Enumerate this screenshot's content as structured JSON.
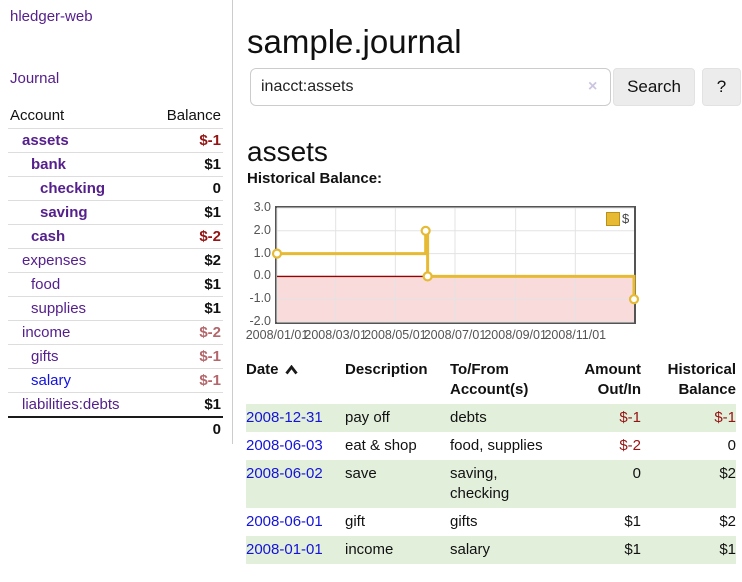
{
  "app_title": "hledger-web",
  "sidebar": {
    "journal_link": "Journal",
    "accounts": {
      "header_account": "Account",
      "header_balance": "Balance",
      "rows": [
        {
          "name": "assets",
          "balance": "$-1",
          "level": 1,
          "bold": true
        },
        {
          "name": "bank",
          "balance": "$1",
          "level": 2,
          "bold": true
        },
        {
          "name": "checking",
          "balance": "0",
          "level": 3,
          "bold": true
        },
        {
          "name": "saving",
          "balance": "$1",
          "level": 3,
          "bold": true
        },
        {
          "name": "cash",
          "balance": "$-2",
          "level": 2,
          "bold": true
        },
        {
          "name": "expenses",
          "balance": "$2",
          "level": 1,
          "bold": false
        },
        {
          "name": "food",
          "balance": "$1",
          "level": 2,
          "bold": false
        },
        {
          "name": "supplies",
          "balance": "$1",
          "level": 2,
          "bold": false
        },
        {
          "name": "income",
          "balance": "$-2",
          "level": 1,
          "bold": false
        },
        {
          "name": "gifts",
          "balance": "$-1",
          "level": 2,
          "bold": false
        },
        {
          "name": "salary",
          "balance": "$-1",
          "level": 2,
          "bold": false,
          "link_color": "blue"
        },
        {
          "name": "liabilities:debts",
          "balance": "$1",
          "level": 1,
          "bold": false
        }
      ],
      "total": "0"
    }
  },
  "main": {
    "title": "sample.journal",
    "search": {
      "value": "inacct:assets",
      "clear_symbol": "×",
      "button_label": "Search",
      "help_label": "?"
    },
    "heading": "assets",
    "chart_label": "Historical Balance:"
  },
  "chart_data": {
    "type": "line",
    "step": true,
    "title": "Historical Balance",
    "legend": [
      {
        "label": "$",
        "color": "#e7ba33"
      }
    ],
    "legend_position": "top-right",
    "x_range": [
      "2008/01/01",
      "2008/12/31"
    ],
    "ylim": [
      -2,
      3
    ],
    "x_ticks": [
      "2008/01/01",
      "2008/03/01",
      "2008/05/01",
      "2008/07/01",
      "2008/09/01",
      "2008/11/01"
    ],
    "y_ticks": [
      "3.0",
      "2.0",
      "1.0",
      "0.0",
      "-1.0",
      "-2.0"
    ],
    "points": [
      {
        "x": "2008/01/01",
        "y": 1
      },
      {
        "x": "2008/06/01",
        "y": 2
      },
      {
        "x": "2008/06/03",
        "y": 0
      },
      {
        "x": "2008/12/31",
        "y": -1
      }
    ],
    "grid": true,
    "negative_region": {
      "below": 0,
      "fill": "#fadbdb",
      "line_color": "#990000"
    }
  },
  "register": {
    "headers": {
      "date": "Date",
      "description": "Description",
      "accounts": "To/From\nAccount(s)",
      "amount": "Amount\nOut/In",
      "balance": "Historical\nBalance"
    },
    "rows": [
      {
        "date": "2008-12-31",
        "description": "pay off",
        "accounts": "debts",
        "amount": "$-1",
        "balance": "$-1"
      },
      {
        "date": "2008-06-03",
        "description": "eat & shop",
        "accounts": "food, supplies",
        "amount": "$-2",
        "balance": "0"
      },
      {
        "date": "2008-06-02",
        "description": "save",
        "accounts": "saving, checking",
        "amount": "0",
        "balance": "$2"
      },
      {
        "date": "2008-06-01",
        "description": "gift",
        "accounts": "gifts",
        "amount": "$1",
        "balance": "$2"
      },
      {
        "date": "2008-01-01",
        "description": "income",
        "accounts": "salary",
        "amount": "$1",
        "balance": "$1"
      }
    ]
  },
  "colors": {
    "link_purple": "#56208c",
    "link_blue": "#1414d8",
    "negative_strong": "#951313",
    "negative_soft": "#b4666b",
    "row_green": "#e2efdb",
    "accent_gold": "#e7ba33",
    "chart_frame": "#545454",
    "chart_grid": "#e3e3e3",
    "chart_negative_fill": "#fadbdb",
    "chart_zero_line": "#990000"
  }
}
